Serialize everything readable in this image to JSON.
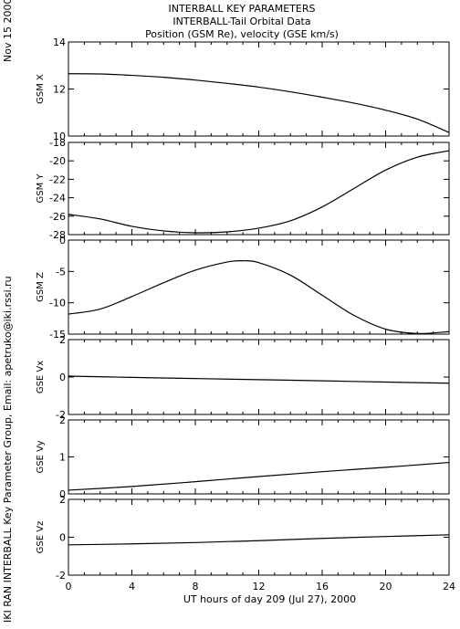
{
  "header": {
    "line1": "INTERBALL KEY PARAMETERS",
    "line2": "INTERBALL-Tail Orbital Data",
    "line3": "Position (GSM Re), velocity (GSE km/s)"
  },
  "side_text": {
    "date": "Nov 15 2000",
    "credit": "IKI RAN INTERBALL Key Parameter Group, Email: apetruko@iki.rssi.ru"
  },
  "colors": {
    "background": "#ffffff",
    "ink": "#000000"
  },
  "chart_data": [
    {
      "type": "line",
      "ylabel": "GSM X",
      "ylim": [
        10,
        14
      ],
      "yticks": [
        "10",
        "12",
        "14"
      ],
      "x": [
        0,
        2,
        4,
        6,
        8,
        10,
        12,
        14,
        16,
        18,
        20,
        22,
        24
      ],
      "series": [
        {
          "values": [
            12.65,
            12.64,
            12.58,
            12.5,
            12.38,
            12.24,
            12.08,
            11.88,
            11.65,
            11.4,
            11.1,
            10.72,
            10.15
          ]
        }
      ]
    },
    {
      "type": "line",
      "ylabel": "GSM Y",
      "ylim": [
        -28,
        -18
      ],
      "yticks": [
        "-28",
        "-26",
        "-24",
        "-22",
        "-20",
        "-18"
      ],
      "x": [
        0,
        2,
        4,
        6,
        8,
        10,
        12,
        14,
        16,
        18,
        20,
        22,
        24
      ],
      "series": [
        {
          "values": [
            -25.8,
            -26.3,
            -27.1,
            -27.6,
            -27.8,
            -27.7,
            -27.3,
            -26.5,
            -25.0,
            -23.0,
            -21.0,
            -19.6,
            -18.9
          ]
        }
      ]
    },
    {
      "type": "line",
      "ylabel": "GSM Z",
      "ylim": [
        -15,
        0
      ],
      "yticks": [
        "-15",
        "-10",
        "-5",
        "0"
      ],
      "x": [
        0,
        2,
        4,
        6,
        8,
        10,
        11,
        12,
        14,
        16,
        18,
        20,
        22,
        24
      ],
      "series": [
        {
          "values": [
            -11.8,
            -11.0,
            -9.0,
            -6.8,
            -4.8,
            -3.5,
            -3.3,
            -3.6,
            -5.6,
            -8.8,
            -12.0,
            -14.2,
            -14.9,
            -14.6
          ]
        }
      ]
    },
    {
      "type": "line",
      "ylabel": "GSE Vx",
      "ylim": [
        -2,
        2
      ],
      "yticks": [
        "-2",
        "0",
        "2"
      ],
      "x": [
        0,
        4,
        8,
        12,
        16,
        20,
        24
      ],
      "series": [
        {
          "values": [
            0.05,
            -0.02,
            -0.08,
            -0.14,
            -0.2,
            -0.27,
            -0.33
          ]
        }
      ]
    },
    {
      "type": "line",
      "ylabel": "GSE Vy",
      "ylim": [
        0,
        2
      ],
      "yticks": [
        "0",
        "1",
        "2"
      ],
      "x": [
        0,
        4,
        8,
        12,
        16,
        20,
        24
      ],
      "series": [
        {
          "values": [
            0.1,
            0.2,
            0.33,
            0.47,
            0.6,
            0.72,
            0.85
          ]
        }
      ]
    },
    {
      "type": "line",
      "ylabel": "GSE Vz",
      "ylim": [
        -2,
        2
      ],
      "yticks": [
        "-2",
        "0",
        "2"
      ],
      "xlabel": "UT hours of day 209 (Jul 27), 2000",
      "xlim": [
        0,
        24
      ],
      "xticks": [
        "0",
        "4",
        "8",
        "12",
        "16",
        "20",
        "24"
      ],
      "x": [
        0,
        4,
        8,
        12,
        16,
        20,
        24
      ],
      "series": [
        {
          "values": [
            -0.4,
            -0.35,
            -0.28,
            -0.18,
            -0.06,
            0.04,
            0.13
          ]
        }
      ]
    }
  ]
}
